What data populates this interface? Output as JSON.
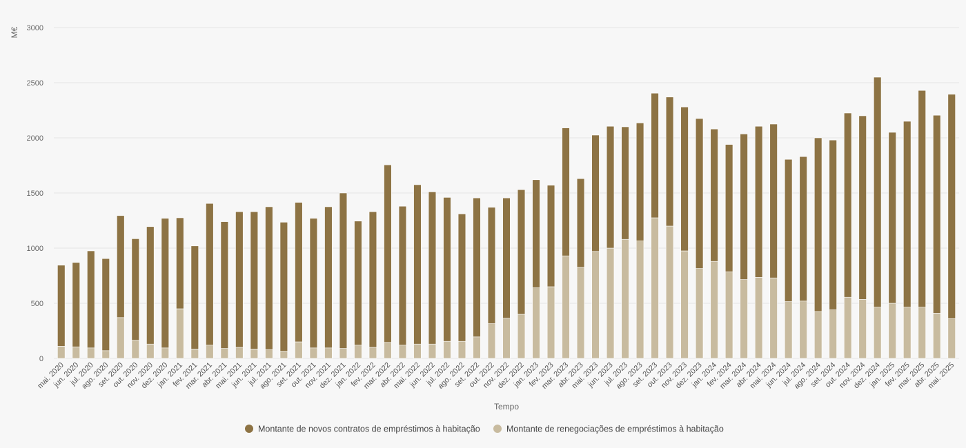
{
  "chart_data": {
    "type": "bar",
    "stacked": true,
    "ylabel": "M€",
    "xlabel": "Tempo",
    "ylim": [
      0,
      3000
    ],
    "yticks": [
      0,
      500,
      1000,
      1500,
      2000,
      2500,
      3000
    ],
    "grid": true,
    "legend_position": "bottom-center",
    "categories": [
      "mai. 2020",
      "jun. 2020",
      "jul. 2020",
      "ago. 2020",
      "set. 2020",
      "out. 2020",
      "nov. 2020",
      "dez. 2020",
      "jan. 2021",
      "fev. 2021",
      "mar. 2021",
      "abr. 2021",
      "mai. 2021",
      "jun. 2021",
      "jul. 2021",
      "ago. 2021",
      "set. 2021",
      "out. 2021",
      "nov. 2021",
      "dez. 2021",
      "jan. 2022",
      "fev. 2022",
      "mar. 2022",
      "abr. 2022",
      "mai. 2022",
      "jun. 2022",
      "jul. 2022",
      "ago. 2022",
      "set. 2022",
      "out. 2022",
      "nov. 2022",
      "dez. 2022",
      "jan. 2023",
      "fev. 2023",
      "mar. 2023",
      "abr. 2023",
      "mai. 2023",
      "jun. 2023",
      "jul. 2023",
      "ago. 2023",
      "set. 2023",
      "out. 2023",
      "nov. 2023",
      "dez. 2023",
      "jan. 2024",
      "fev. 2024",
      "mar. 2024",
      "abr. 2024",
      "mai. 2024",
      "jun. 2024",
      "jul. 2024",
      "ago. 2024",
      "set. 2024",
      "out. 2024",
      "nov. 2024",
      "dez. 2024",
      "jan. 2025",
      "fev. 2025",
      "mar. 2025",
      "abr. 2025",
      "mai. 2025"
    ],
    "series": [
      {
        "name": "Montante de renegociações de empréstimos à habitação",
        "color": "#c8bb9f",
        "values": [
          110,
          105,
          95,
          70,
          370,
          165,
          130,
          95,
          450,
          85,
          120,
          90,
          100,
          85,
          80,
          65,
          150,
          95,
          95,
          90,
          120,
          100,
          145,
          120,
          130,
          130,
          155,
          155,
          195,
          315,
          365,
          400,
          640,
          650,
          930,
          825,
          970,
          1000,
          1080,
          1065,
          1275,
          1200,
          975,
          815,
          880,
          785,
          715,
          735,
          730,
          515,
          520,
          425,
          440,
          555,
          535,
          465,
          500,
          465,
          465,
          410,
          360
        ]
      },
      {
        "name": "Montante de novos contratos de empréstimos à habitação",
        "color": "#8d7344",
        "values": [
          735,
          765,
          880,
          835,
          925,
          920,
          1065,
          1175,
          825,
          935,
          1285,
          1150,
          1230,
          1245,
          1295,
          1170,
          1265,
          1175,
          1280,
          1410,
          1125,
          1230,
          1610,
          1260,
          1445,
          1380,
          1305,
          1155,
          1260,
          1055,
          1090,
          1130,
          980,
          920,
          1160,
          805,
          1055,
          1105,
          1020,
          1070,
          1130,
          1170,
          1305,
          1360,
          1200,
          1155,
          1320,
          1370,
          1395,
          1290,
          1310,
          1575,
          1540,
          1670,
          1665,
          2085,
          1550,
          1685,
          1965,
          1795,
          2035
        ]
      }
    ]
  }
}
